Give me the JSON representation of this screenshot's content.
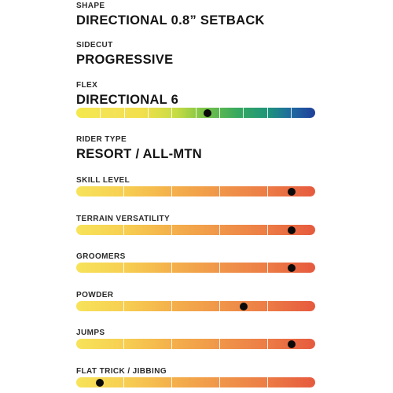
{
  "shape": {
    "label": "SHAPE",
    "value": "DIRECTIONAL 0.8” SETBACK"
  },
  "sidecut": {
    "label": "SIDECUT",
    "value": "PROGRESSIVE"
  },
  "flex": {
    "label": "FLEX",
    "value": "DIRECTIONAL 6",
    "level": 0.55
  },
  "rider_type": {
    "label": "RIDER TYPE",
    "value": "RESORT / ALL-MTN"
  },
  "ratings": [
    {
      "label": "SKILL LEVEL",
      "level": 0.9
    },
    {
      "label": "TERRAIN VERSATILITY",
      "level": 0.9
    },
    {
      "label": "GROOMERS",
      "level": 0.9
    },
    {
      "label": "POWDER",
      "level": 0.7
    },
    {
      "label": "JUMPS",
      "level": 0.9
    },
    {
      "label": "FLAT TRICK / JIBBING",
      "level": 0.1
    }
  ],
  "colors": {
    "flex_gradient": [
      "#f4e84c",
      "#c6dc44",
      "#36a860",
      "#1f3f9a"
    ],
    "rating_gradient": [
      "#f7e35a",
      "#f0964a",
      "#e65a3e"
    ],
    "marker": "#0a0a0a"
  }
}
